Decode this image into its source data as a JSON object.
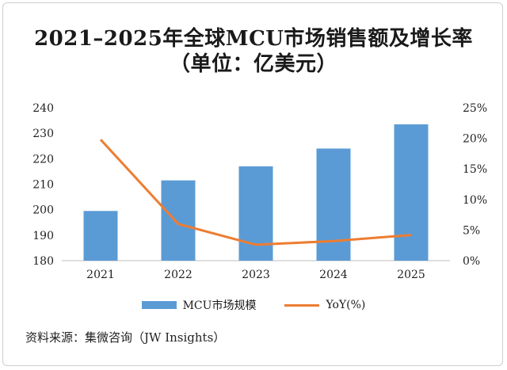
{
  "title_line1": "2021–2025年全球MCU市场销售额及增长率",
  "title_line2": "（单位：亿美元）",
  "source": "资料来源：集微咨询（JW Insights）",
  "chart_data": {
    "type": "bar",
    "categories": [
      "2021",
      "2022",
      "2023",
      "2024",
      "2025"
    ],
    "series": [
      {
        "name": "MCU市场规模",
        "type": "bar",
        "axis": "left",
        "color": "#5b9bd5",
        "values": [
          199.5,
          211.5,
          217,
          224,
          233.5
        ]
      },
      {
        "name": "YoY(%)",
        "type": "line",
        "axis": "right",
        "color": "#ed7d31",
        "values": [
          19.8,
          6.0,
          2.6,
          3.2,
          4.2
        ]
      }
    ],
    "y_left": {
      "min": 180,
      "max": 240,
      "ticks": [
        "180",
        "190",
        "200",
        "210",
        "220",
        "230",
        "240"
      ]
    },
    "y_right": {
      "min": 0,
      "max": 25,
      "ticks": [
        "0%",
        "5%",
        "10%",
        "15%",
        "20%",
        "25%"
      ]
    },
    "grid": false,
    "legend_position": "bottom"
  }
}
